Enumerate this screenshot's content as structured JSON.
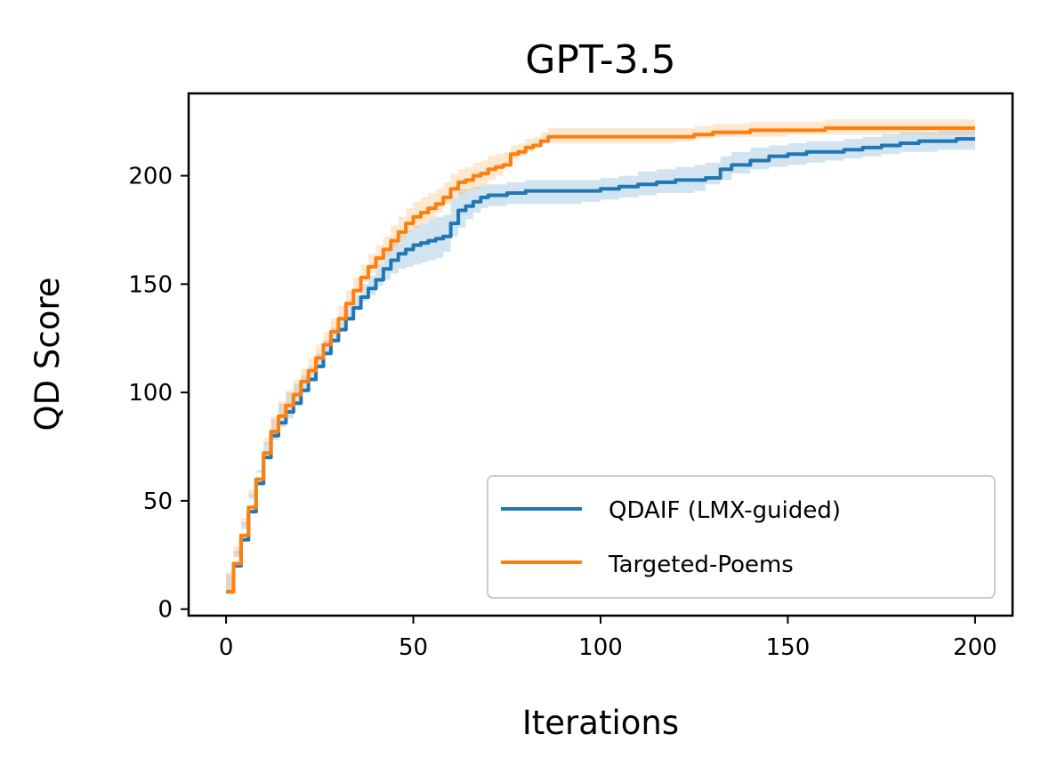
{
  "chart_data": {
    "type": "line",
    "title": "GPT-3.5",
    "xlabel": "Iterations",
    "ylabel": "QD Score",
    "xlim": [
      -10,
      210
    ],
    "ylim": [
      -3,
      238
    ],
    "xticks": [
      0,
      50,
      100,
      150,
      200
    ],
    "yticks": [
      0,
      50,
      100,
      150,
      200
    ],
    "grid": false,
    "legend_position": "lower-right",
    "series": [
      {
        "name": "QDAIF (LMX-guided)",
        "color": "#1f77b4",
        "band_color": "#1f77b4",
        "x": [
          0,
          2,
          4,
          6,
          8,
          10,
          12,
          14,
          16,
          18,
          20,
          22,
          24,
          26,
          28,
          30,
          32,
          34,
          36,
          38,
          40,
          42,
          44,
          46,
          48,
          50,
          52,
          54,
          56,
          58,
          60,
          62,
          64,
          66,
          68,
          70,
          75,
          80,
          85,
          90,
          95,
          100,
          105,
          110,
          115,
          120,
          125,
          128,
          132,
          135,
          140,
          145,
          150,
          155,
          160,
          165,
          170,
          175,
          180,
          185,
          190,
          195,
          200
        ],
        "values": [
          8,
          20,
          32,
          45,
          58,
          70,
          80,
          86,
          91,
          95,
          101,
          106,
          112,
          118,
          124,
          129,
          134,
          139,
          144,
          148,
          152,
          157,
          161,
          164,
          166,
          168,
          169,
          170,
          171,
          172,
          178,
          184,
          186,
          188,
          190,
          191,
          192,
          193,
          193,
          193,
          193,
          194,
          195,
          196,
          197,
          198,
          198,
          199,
          203,
          205,
          207,
          209,
          210,
          211,
          211,
          212,
          213,
          214,
          215,
          216,
          216,
          217,
          217
        ],
        "lower": [
          8,
          16,
          27,
          40,
          53,
          63,
          72,
          78,
          84,
          88,
          95,
          100,
          106,
          112,
          118,
          123,
          128,
          133,
          138,
          142,
          145,
          149,
          152,
          155,
          157,
          158,
          159,
          160,
          161,
          162,
          165,
          172,
          176,
          180,
          183,
          185,
          186,
          187,
          187,
          187,
          187,
          188,
          189,
          190,
          191,
          192,
          192,
          193,
          196,
          198,
          201,
          203,
          204,
          205,
          206,
          207,
          208,
          209,
          210,
          211,
          211,
          212,
          212
        ],
        "upper": [
          8,
          24,
          37,
          51,
          64,
          77,
          88,
          95,
          100,
          104,
          108,
          112,
          118,
          124,
          130,
          135,
          140,
          145,
          150,
          154,
          159,
          165,
          170,
          173,
          175,
          177,
          178,
          180,
          181,
          182,
          190,
          194,
          194,
          195,
          196,
          196,
          197,
          198,
          198,
          198,
          198,
          199,
          200,
          202,
          203,
          204,
          205,
          206,
          209,
          211,
          213,
          214,
          215,
          216,
          216,
          217,
          218,
          219,
          220,
          220,
          221,
          221,
          222
        ]
      },
      {
        "name": "Targeted-Poems",
        "color": "#ff7f0e",
        "band_color": "#ffbb78",
        "x": [
          0,
          2,
          4,
          6,
          8,
          10,
          12,
          14,
          16,
          18,
          20,
          22,
          24,
          26,
          28,
          30,
          32,
          34,
          36,
          38,
          40,
          42,
          44,
          46,
          48,
          50,
          52,
          54,
          56,
          58,
          60,
          62,
          64,
          66,
          68,
          70,
          72,
          74,
          76,
          78,
          80,
          82,
          84,
          86,
          90,
          95,
          100,
          110,
          120,
          125,
          130,
          140,
          150,
          160,
          170,
          180,
          190,
          200
        ],
        "values": [
          8,
          21,
          34,
          47,
          60,
          72,
          82,
          89,
          94,
          99,
          105,
          110,
          116,
          122,
          128,
          134,
          141,
          147,
          153,
          158,
          162,
          166,
          170,
          174,
          178,
          181,
          183,
          185,
          187,
          190,
          194,
          197,
          198,
          200,
          201,
          203,
          204,
          205,
          210,
          211,
          213,
          214,
          216,
          218,
          218,
          218,
          218,
          218,
          218,
          219,
          220,
          221,
          221,
          222,
          222,
          222,
          222,
          222
        ],
        "lower": [
          8,
          17,
          29,
          42,
          55,
          66,
          76,
          83,
          88,
          93,
          99,
          104,
          110,
          116,
          122,
          128,
          134,
          140,
          146,
          151,
          155,
          159,
          163,
          167,
          171,
          174,
          176,
          178,
          180,
          183,
          187,
          190,
          191,
          193,
          194,
          196,
          198,
          200,
          205,
          207,
          209,
          211,
          213,
          215,
          215,
          215,
          215,
          215,
          215,
          216,
          217,
          218,
          218,
          219,
          219,
          219,
          219,
          219
        ],
        "upper": [
          8,
          25,
          39,
          52,
          66,
          79,
          89,
          96,
          101,
          106,
          111,
          116,
          122,
          128,
          134,
          140,
          147,
          153,
          159,
          164,
          168,
          172,
          177,
          181,
          185,
          188,
          190,
          192,
          194,
          197,
          201,
          203,
          204,
          206,
          207,
          209,
          210,
          211,
          214,
          215,
          217,
          218,
          220,
          222,
          222,
          222,
          222,
          222,
          222,
          223,
          224,
          225,
          225,
          226,
          226,
          226,
          226,
          226
        ]
      }
    ]
  }
}
